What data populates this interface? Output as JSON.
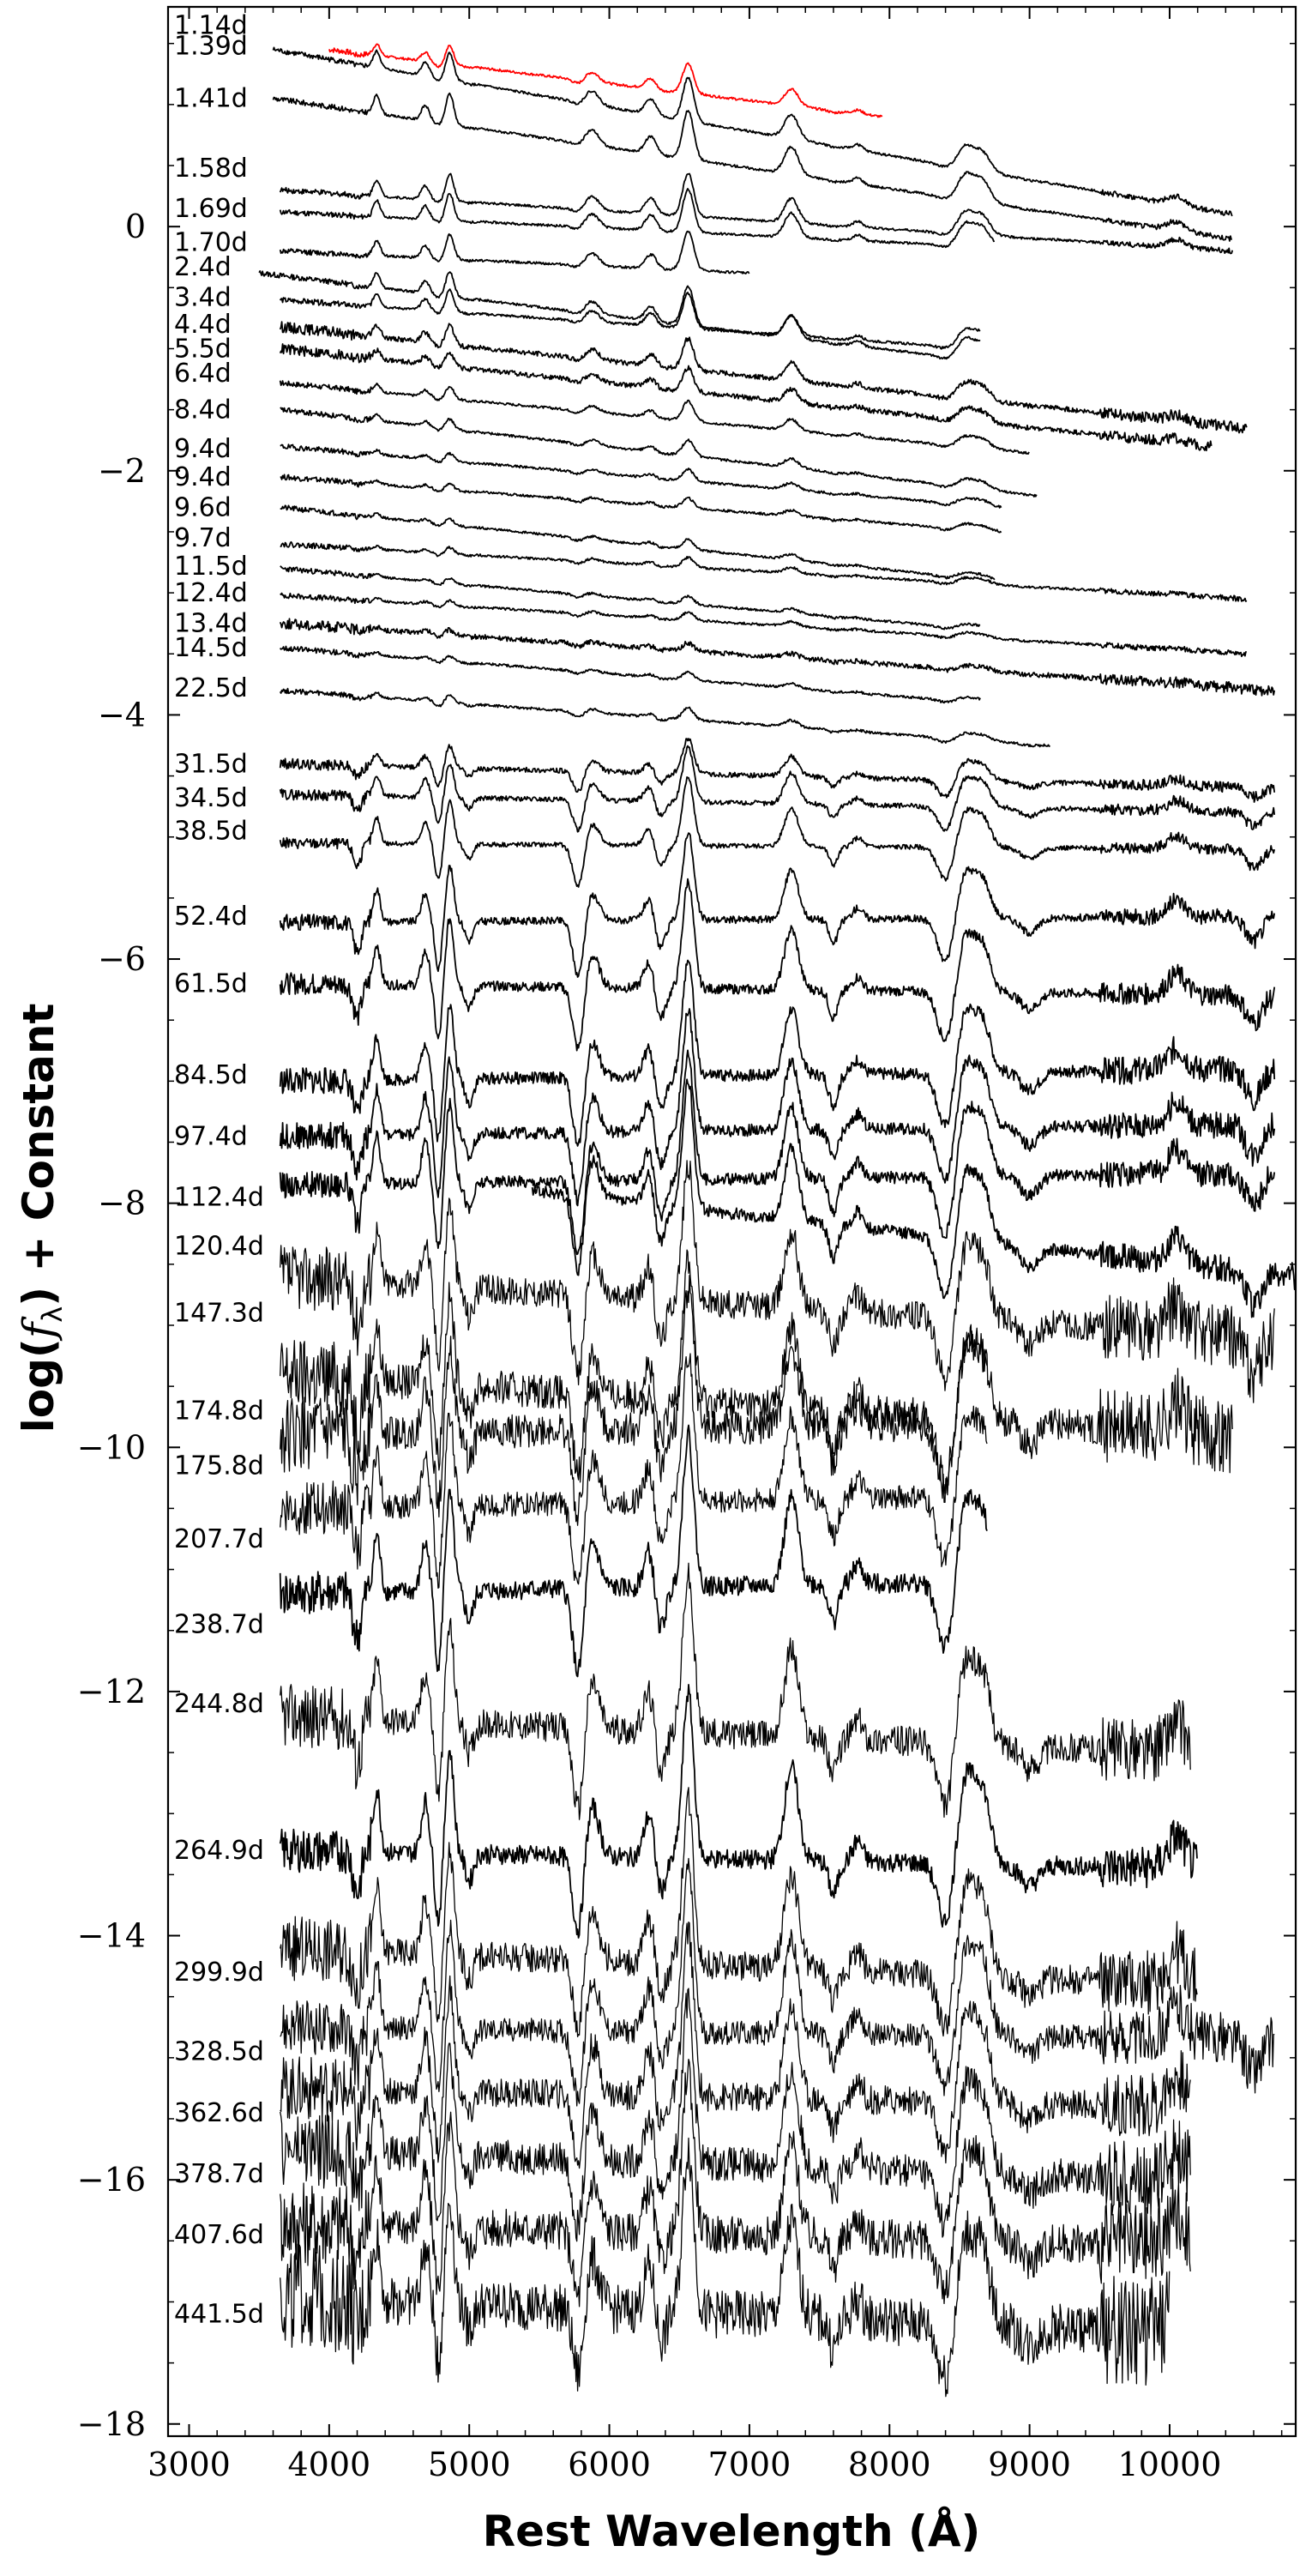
{
  "chart_data": {
    "type": "line",
    "title": "",
    "xlabel": "Rest Wavelength (Å)",
    "ylabel_prefix": "log(",
    "ylabel_symbol": "f",
    "ylabel_subscript": "λ",
    "ylabel_suffix": ") + Constant",
    "xlim": [
      2850,
      10900
    ],
    "ylim": [
      -18.1,
      1.8
    ],
    "x_ticks": [
      3000,
      4000,
      5000,
      6000,
      7000,
      8000,
      9000,
      10000
    ],
    "x_tick_labels": [
      "3000",
      "4000",
      "5000",
      "6000",
      "7000",
      "8000",
      "9000",
      "10000"
    ],
    "y_ticks": [
      0,
      -2,
      -4,
      -6,
      -8,
      -10,
      -12,
      -14,
      -16,
      -18
    ],
    "y_tick_labels": [
      "0",
      "−2",
      "−4",
      "−6",
      "−8",
      "−10",
      "−12",
      "−14",
      "−16",
      "−18"
    ],
    "grid": false,
    "legend": "none",
    "line_colors": {
      "highlight": "#ff0000",
      "default": "#000000"
    },
    "series": [
      {
        "name": "1.14d",
        "label_y": 1.65,
        "x_start": 4000,
        "x_end": 7950,
        "y_start": 1.45,
        "y_end": 0.9,
        "color": "#ff0000",
        "emission_strength": 0.15,
        "absorption_strength": 0.03,
        "noise": 0.01
      },
      {
        "name": "1.39d",
        "label_y": 1.48,
        "x_start": 3600,
        "x_end": 10450,
        "y_start": 1.45,
        "y_end": 0.1,
        "color": "#000000",
        "emission_strength": 0.22,
        "absorption_strength": 0.02,
        "noise": 0.01
      },
      {
        "name": "1.41d",
        "label_y": 1.05,
        "x_start": 3600,
        "x_end": 10450,
        "y_start": 1.05,
        "y_end": -0.1,
        "color": "#000000",
        "emission_strength": 0.25,
        "absorption_strength": 0.02,
        "noise": 0.01
      },
      {
        "name": "1.58d",
        "label_y": 0.48,
        "x_start": 3650,
        "x_end": 10450,
        "y_start": 0.3,
        "y_end": -0.2,
        "color": "#000000",
        "emission_strength": 0.22,
        "absorption_strength": 0.02,
        "noise": 0.01
      },
      {
        "name": "1.69d",
        "label_y": 0.15,
        "x_start": 3650,
        "x_end": 8750,
        "y_start": 0.12,
        "y_end": -0.17,
        "color": "#000000",
        "emission_strength": 0.22,
        "absorption_strength": 0.02,
        "noise": 0.01
      },
      {
        "name": "1.70d",
        "label_y": -0.13,
        "x_start": 3650,
        "x_end": 7000,
        "y_start": -0.2,
        "y_end": -0.38,
        "color": "#000000",
        "emission_strength": 0.2,
        "absorption_strength": 0.02,
        "noise": 0.01
      },
      {
        "name": "2.4d",
        "label_y": -0.33,
        "x_start": 3500,
        "x_end": 8650,
        "y_start": -0.38,
        "y_end": -1.1,
        "color": "#000000",
        "emission_strength": 0.2,
        "absorption_strength": 0.02,
        "noise": 0.01
      },
      {
        "name": "3.4d",
        "label_y": -0.58,
        "x_start": 3650,
        "x_end": 8650,
        "y_start": -0.6,
        "y_end": -1.0,
        "color": "#000000",
        "emission_strength": 0.18,
        "absorption_strength": 0.02,
        "noise": 0.01
      },
      {
        "name": "4.4d",
        "label_y": -0.8,
        "x_start": 3650,
        "x_end": 10550,
        "y_start": -0.82,
        "y_end": -1.65,
        "color": "#000000",
        "emission_strength": 0.16,
        "absorption_strength": 0.02,
        "noise": 0.02
      },
      {
        "name": "5.5d",
        "label_y": -1.0,
        "x_start": 3650,
        "x_end": 10300,
        "y_start": -1.0,
        "y_end": -1.8,
        "color": "#000000",
        "emission_strength": 0.12,
        "absorption_strength": 0.02,
        "noise": 0.02
      },
      {
        "name": "6.4d",
        "label_y": -1.2,
        "x_start": 3650,
        "x_end": 9000,
        "y_start": -1.28,
        "y_end": -1.85,
        "color": "#000000",
        "emission_strength": 0.1,
        "absorption_strength": 0.02,
        "noise": 0.01
      },
      {
        "name": "8.4d",
        "label_y": -1.5,
        "x_start": 3650,
        "x_end": 9050,
        "y_start": -1.5,
        "y_end": -2.2,
        "color": "#000000",
        "emission_strength": 0.08,
        "absorption_strength": 0.02,
        "noise": 0.01
      },
      {
        "name": "9.4d",
        "label_y": -1.82,
        "x_start": 3650,
        "x_end": 8800,
        "y_start": -1.8,
        "y_end": -2.3,
        "color": "#000000",
        "emission_strength": 0.06,
        "absorption_strength": 0.02,
        "noise": 0.01
      },
      {
        "name": "9.4d",
        "label_y": -2.05,
        "x_start": 3650,
        "x_end": 8800,
        "y_start": -2.05,
        "y_end": -2.5,
        "color": "#000000",
        "emission_strength": 0.05,
        "absorption_strength": 0.02,
        "noise": 0.01
      },
      {
        "name": "9.6d",
        "label_y": -2.3,
        "x_start": 3650,
        "x_end": 8750,
        "y_start": -2.3,
        "y_end": -2.9,
        "color": "#000000",
        "emission_strength": 0.05,
        "absorption_strength": 0.02,
        "noise": 0.01
      },
      {
        "name": "9.7d",
        "label_y": -2.55,
        "x_start": 3650,
        "x_end": 10550,
        "y_start": -2.6,
        "y_end": -3.05,
        "color": "#000000",
        "emission_strength": 0.05,
        "absorption_strength": 0.02,
        "noise": 0.01
      },
      {
        "name": "11.5d",
        "label_y": -2.78,
        "x_start": 3650,
        "x_end": 8650,
        "y_start": -2.8,
        "y_end": -3.3,
        "color": "#000000",
        "emission_strength": 0.04,
        "absorption_strength": 0.02,
        "noise": 0.01
      },
      {
        "name": "12.4d",
        "label_y": -3.0,
        "x_start": 3650,
        "x_end": 10550,
        "y_start": -3.02,
        "y_end": -3.5,
        "color": "#000000",
        "emission_strength": 0.04,
        "absorption_strength": 0.02,
        "noise": 0.01
      },
      {
        "name": "13.4d",
        "label_y": -3.25,
        "x_start": 3650,
        "x_end": 10750,
        "y_start": -3.25,
        "y_end": -3.8,
        "color": "#000000",
        "emission_strength": 0.04,
        "absorption_strength": 0.02,
        "noise": 0.02
      },
      {
        "name": "14.5d",
        "label_y": -3.45,
        "x_start": 3650,
        "x_end": 8650,
        "y_start": -3.45,
        "y_end": -3.9,
        "color": "#000000",
        "emission_strength": 0.04,
        "absorption_strength": 0.02,
        "noise": 0.01
      },
      {
        "name": "22.5d",
        "label_y": -3.78,
        "x_start": 3650,
        "x_end": 9150,
        "y_start": -3.8,
        "y_end": -4.25,
        "color": "#000000",
        "emission_strength": 0.06,
        "absorption_strength": 0.04,
        "noise": 0.01
      },
      {
        "name": "31.5d",
        "label_y": -4.4,
        "x_start": 3650,
        "x_end": 10750,
        "y_start": -4.4,
        "y_end": -4.6,
        "color": "#000000",
        "emission_strength": 0.18,
        "absorption_strength": 0.15,
        "noise": 0.02
      },
      {
        "name": "34.5d",
        "label_y": -4.68,
        "x_start": 3650,
        "x_end": 10750,
        "y_start": -4.65,
        "y_end": -4.8,
        "color": "#000000",
        "emission_strength": 0.28,
        "absorption_strength": 0.22,
        "noise": 0.02
      },
      {
        "name": "38.5d",
        "label_y": -4.95,
        "x_start": 3650,
        "x_end": 10750,
        "y_start": -5.05,
        "y_end": -5.1,
        "color": "#000000",
        "emission_strength": 0.35,
        "absorption_strength": 0.3,
        "noise": 0.02
      },
      {
        "name": "52.4d",
        "label_y": -5.65,
        "x_start": 3650,
        "x_end": 10750,
        "y_start": -5.7,
        "y_end": -5.65,
        "color": "#000000",
        "emission_strength": 0.45,
        "absorption_strength": 0.4,
        "noise": 0.03
      },
      {
        "name": "61.5d",
        "label_y": -6.2,
        "x_start": 3650,
        "x_end": 10750,
        "y_start": -6.2,
        "y_end": -6.3,
        "color": "#000000",
        "emission_strength": 0.55,
        "absorption_strength": 0.45,
        "noise": 0.04
      },
      {
        "name": "84.5d",
        "label_y": -6.95,
        "x_start": 3650,
        "x_end": 10750,
        "y_start": -7.0,
        "y_end": -6.9,
        "color": "#000000",
        "emission_strength": 0.6,
        "absorption_strength": 0.5,
        "noise": 0.05
      },
      {
        "name": "97.4d",
        "label_y": -7.45,
        "x_start": 3650,
        "x_end": 10750,
        "y_start": -7.45,
        "y_end": -7.35,
        "color": "#000000",
        "emission_strength": 0.62,
        "absorption_strength": 0.5,
        "noise": 0.05
      },
      {
        "name": "112.4d",
        "label_y": -7.95,
        "x_start": 3650,
        "x_end": 10750,
        "y_start": -7.85,
        "y_end": -7.75,
        "color": "#000000",
        "emission_strength": 0.65,
        "absorption_strength": 0.55,
        "noise": 0.05
      },
      {
        "name": "120.4d",
        "label_y": -8.35,
        "x_start": 5450,
        "x_end": 10900,
        "y_start": -7.9,
        "y_end": -8.6,
        "color": "#000000",
        "emission_strength": 0.65,
        "absorption_strength": 0.55,
        "noise": 0.05
      },
      {
        "name": "147.3d",
        "label_y": -8.9,
        "x_start": 3650,
        "x_end": 10750,
        "y_start": -8.6,
        "y_end": -9.1,
        "color": "#000000",
        "emission_strength": 0.7,
        "absorption_strength": 0.6,
        "noise": 0.12
      },
      {
        "name": "174.8d",
        "label_y": -9.7,
        "x_start": 3650,
        "x_end": 10450,
        "y_start": -9.4,
        "y_end": -9.9,
        "color": "#000000",
        "emission_strength": 0.72,
        "absorption_strength": 0.6,
        "noise": 0.14
      },
      {
        "name": "175.8d",
        "label_y": -10.15,
        "x_start": 3650,
        "x_end": 8700,
        "y_start": -9.9,
        "y_end": -9.8,
        "color": "#000000",
        "emission_strength": 0.72,
        "absorption_strength": 0.6,
        "noise": 0.14
      },
      {
        "name": "207.7d",
        "label_y": -10.75,
        "x_start": 3650,
        "x_end": 8700,
        "y_start": -10.5,
        "y_end": -10.4,
        "color": "#000000",
        "emission_strength": 0.75,
        "absorption_strength": 0.62,
        "noise": 0.1
      },
      {
        "name": "238.7d",
        "label_y": -11.45,
        "x_start": 3650,
        "x_end": 8700,
        "y_start": -11.2,
        "y_end": -11.1,
        "color": "#000000",
        "emission_strength": 0.78,
        "absorption_strength": 0.62,
        "noise": 0.08
      },
      {
        "name": "244.8d",
        "label_y": -12.1,
        "x_start": 3650,
        "x_end": 10150,
        "y_start": -12.2,
        "y_end": -12.5,
        "color": "#000000",
        "emission_strength": 0.8,
        "absorption_strength": 0.6,
        "noise": 0.12
      },
      {
        "name": "264.9d",
        "label_y": -13.3,
        "x_start": 3650,
        "x_end": 10200,
        "y_start": -13.3,
        "y_end": -13.45,
        "color": "#000000",
        "emission_strength": 0.85,
        "absorption_strength": 0.55,
        "noise": 0.08
      },
      {
        "name": "299.9d",
        "label_y": -14.3,
        "x_start": 3650,
        "x_end": 10200,
        "y_start": -14.1,
        "y_end": -14.4,
        "color": "#000000",
        "emission_strength": 0.85,
        "absorption_strength": 0.5,
        "noise": 0.12
      },
      {
        "name": "328.5d",
        "label_y": -14.95,
        "x_start": 3650,
        "x_end": 10750,
        "y_start": -14.75,
        "y_end": -14.85,
        "color": "#000000",
        "emission_strength": 0.85,
        "absorption_strength": 0.5,
        "noise": 0.1
      },
      {
        "name": "362.6d",
        "label_y": -15.45,
        "x_start": 3650,
        "x_end": 10150,
        "y_start": -15.25,
        "y_end": -15.4,
        "color": "#000000",
        "emission_strength": 0.85,
        "absorption_strength": 0.5,
        "noise": 0.12
      },
      {
        "name": "378.7d",
        "label_y": -15.95,
        "x_start": 3650,
        "x_end": 10150,
        "y_start": -15.75,
        "y_end": -16.0,
        "color": "#000000",
        "emission_strength": 0.85,
        "absorption_strength": 0.5,
        "noise": 0.14
      },
      {
        "name": "407.6d",
        "label_y": -16.45,
        "x_start": 3650,
        "x_end": 10150,
        "y_start": -16.35,
        "y_end": -16.55,
        "color": "#000000",
        "emission_strength": 0.85,
        "absorption_strength": 0.5,
        "noise": 0.16
      },
      {
        "name": "441.5d",
        "label_y": -17.1,
        "x_start": 3650,
        "x_end": 10000,
        "y_start": -16.95,
        "y_end": -17.25,
        "color": "#000000",
        "emission_strength": 0.85,
        "absorption_strength": 0.5,
        "noise": 0.2
      }
    ]
  }
}
